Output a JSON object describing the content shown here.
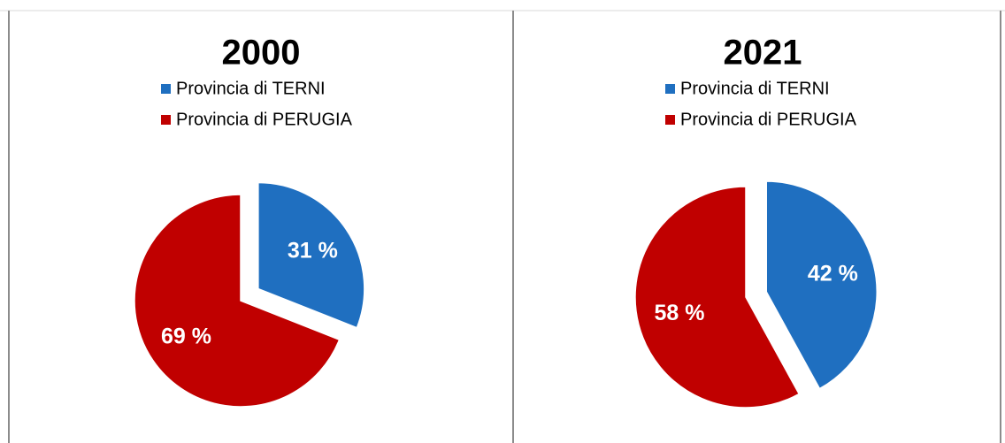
{
  "chart_data": [
    {
      "type": "pie",
      "title": "2000",
      "categories": [
        "Provincia di TERNI",
        "Provincia di PERUGIA"
      ],
      "values": [
        31,
        69
      ],
      "value_labels": [
        "31 %",
        "69 %"
      ],
      "colors": [
        "#1f6fc0",
        "#c00000"
      ],
      "exploded": [
        true,
        false
      ]
    },
    {
      "type": "pie",
      "title": "2021",
      "categories": [
        "Provincia di TERNI",
        "Provincia di PERUGIA"
      ],
      "values": [
        42,
        58
      ],
      "value_labels": [
        "42 %",
        "58 %"
      ],
      "colors": [
        "#1f6fc0",
        "#c00000"
      ],
      "exploded": [
        true,
        false
      ]
    }
  ]
}
